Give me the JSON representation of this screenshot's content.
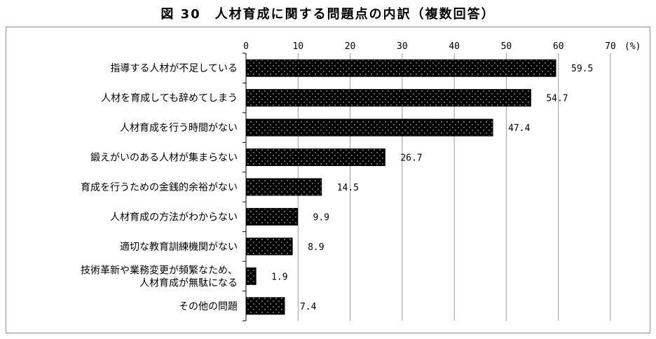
{
  "chart_data": {
    "type": "bar",
    "orientation": "horizontal",
    "title": "図 30　人材育成に関する問題点の内訳（複数回答）",
    "xlim": [
      0,
      70
    ],
    "x_ticks": [
      0,
      10,
      20,
      30,
      40,
      50,
      60,
      70
    ],
    "x_unit": "(%)",
    "grid": true,
    "bar_pattern": "black-dotted",
    "categories": [
      [
        "指導する人材が不足している"
      ],
      [
        "人材を育成しても辞めてしまう"
      ],
      [
        "人材育成を行う時間がない"
      ],
      [
        "鍛えがいのある人材が集まらない"
      ],
      [
        "育成を行うための金銭的余裕がない"
      ],
      [
        "人材育成の方法がわからない"
      ],
      [
        "適切な教育訓練機関がない"
      ],
      [
        "技術革新や業務変更が頻繁なため、",
        "人材育成が無駄になる"
      ],
      [
        "その他の問題"
      ]
    ],
    "values": [
      59.5,
      54.7,
      47.4,
      26.7,
      14.5,
      9.9,
      8.9,
      1.9,
      7.4
    ],
    "value_labels": [
      "59.5",
      "54.7",
      "47.4",
      "26.7",
      "14.5",
      "9.9",
      "8.9",
      "1.9",
      "7.4"
    ]
  }
}
